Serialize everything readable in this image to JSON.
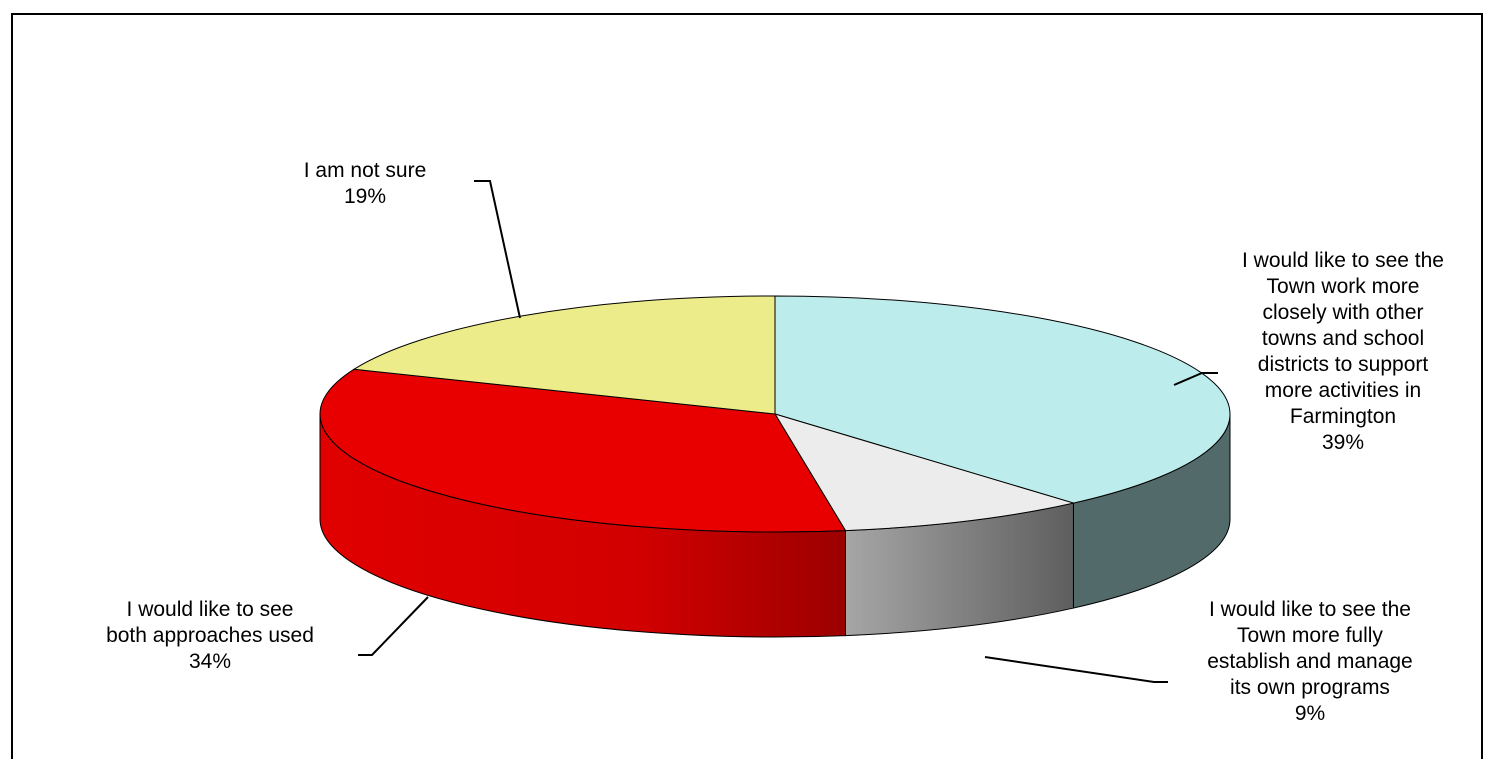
{
  "chart_data": {
    "type": "pie",
    "style": "3d-exploded-none",
    "title": "",
    "slices": [
      {
        "label": "I would like to see the\nTown work more\nclosely with other\ntowns and school\ndistricts to support\nmore activities in\nFarmington",
        "value": 39,
        "display": "39%",
        "color": "#bdecec",
        "side_color": "#536a6a"
      },
      {
        "label": "I would like to see the\nTown more fully\nestablish and manage\nits own programs",
        "value": 9,
        "display": "9%",
        "color": "#ececec",
        "side_color": "#8a8a8a"
      },
      {
        "label": "I would like to see\nboth approaches used",
        "value": 34,
        "display": "34%",
        "color": "#e80000",
        "side_color": "#b80000"
      },
      {
        "label": "I am not sure",
        "value": 19,
        "display": "19%",
        "color": "#ecec8a",
        "side_color": "#8a8a50"
      }
    ],
    "start": "12 o'clock",
    "direction": "clockwise"
  }
}
